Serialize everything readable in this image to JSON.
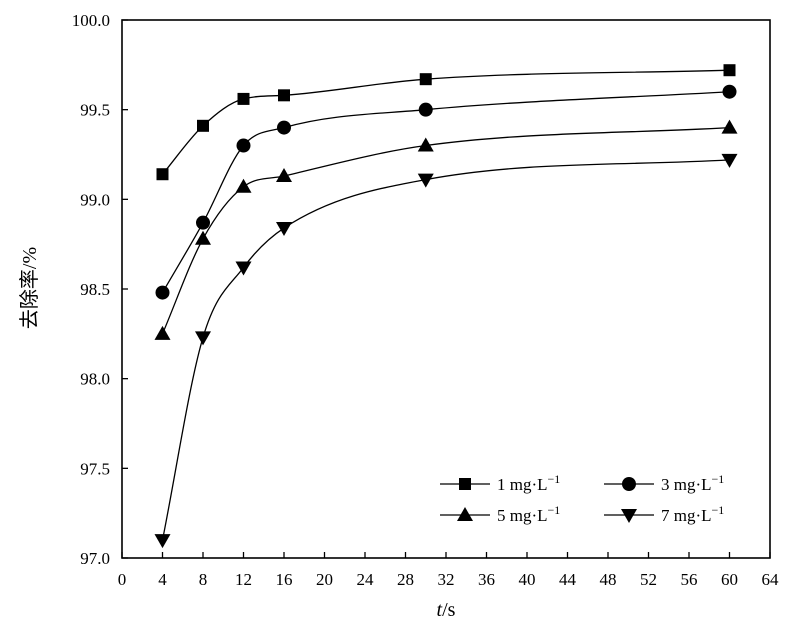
{
  "chart_data": {
    "type": "line",
    "xlabel_italic": "t",
    "xlabel_unit": "/s",
    "ylabel": "去除率/%",
    "xlim": [
      0,
      64
    ],
    "ylim": [
      97.0,
      100.0
    ],
    "xticks": [
      "0",
      "4",
      "8",
      "12",
      "16",
      "20",
      "24",
      "28",
      "32",
      "36",
      "40",
      "44",
      "48",
      "52",
      "56",
      "60",
      "64"
    ],
    "yticks": [
      "97.0",
      "97.5",
      "98.0",
      "98.5",
      "99.0",
      "99.5",
      "100.0"
    ],
    "grid": false,
    "legend_position": "bottom-right",
    "x": [
      4,
      8,
      12,
      16,
      30,
      60
    ],
    "series": [
      {
        "name": "1 mg·L",
        "superscript": "−1",
        "marker": "square",
        "values": [
          99.14,
          99.41,
          99.56,
          99.58,
          99.67,
          99.72
        ]
      },
      {
        "name": "3 mg·L",
        "superscript": "−1",
        "marker": "circle",
        "values": [
          98.48,
          98.87,
          99.3,
          99.4,
          99.5,
          99.6
        ]
      },
      {
        "name": "5 mg·L",
        "superscript": "−1",
        "marker": "triangle-up",
        "values": [
          98.25,
          98.78,
          99.07,
          99.13,
          99.3,
          99.4
        ]
      },
      {
        "name": "7 mg·L",
        "superscript": "−1",
        "marker": "triangle-down",
        "values": [
          97.1,
          98.23,
          98.62,
          98.84,
          99.11,
          99.22
        ]
      }
    ]
  }
}
